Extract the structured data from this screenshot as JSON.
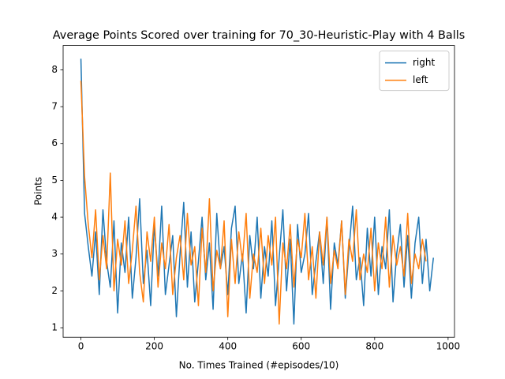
{
  "chart_data": {
    "type": "line",
    "title": "Average Points Scored over training for 70_30-Heuristic-Play with 4 Balls",
    "x_label": "No. Times Trained (#episodes/10)",
    "y_label": "Points",
    "x": [
      0,
      10,
      20,
      30,
      40,
      50,
      60,
      70,
      80,
      90,
      100,
      110,
      120,
      130,
      140,
      150,
      160,
      170,
      180,
      190,
      200,
      210,
      220,
      230,
      240,
      250,
      260,
      270,
      280,
      290,
      300,
      310,
      320,
      330,
      340,
      350,
      360,
      370,
      380,
      390,
      400,
      410,
      420,
      430,
      440,
      450,
      460,
      470,
      480,
      490,
      500,
      510,
      520,
      530,
      540,
      550,
      560,
      570,
      580,
      590,
      600,
      610,
      620,
      630,
      640,
      650,
      660,
      670,
      680,
      690,
      700,
      710,
      720,
      730,
      740,
      750,
      760,
      770,
      780,
      790,
      800,
      810,
      820,
      830,
      840,
      850,
      860,
      870,
      880,
      890,
      900,
      910,
      920,
      930,
      940,
      950,
      960
    ],
    "series": [
      {
        "name": "right",
        "color": "#1f77b4",
        "values": [
          8.3,
          4.1,
          3.2,
          2.4,
          3.6,
          1.9,
          4.2,
          2.8,
          2.1,
          3.9,
          1.4,
          3.3,
          2.5,
          4.0,
          1.8,
          2.9,
          4.5,
          2.2,
          3.1,
          1.6,
          3.8,
          2.4,
          4.3,
          1.9,
          2.7,
          3.5,
          1.3,
          3.0,
          4.4,
          2.1,
          3.6,
          1.7,
          2.8,
          4.0,
          2.3,
          3.3,
          1.5,
          4.1,
          2.6,
          3.2,
          1.9,
          3.7,
          4.3,
          2.2,
          3.0,
          1.4,
          3.5,
          2.6,
          4.0,
          1.8,
          3.2,
          2.4,
          3.9,
          1.6,
          2.9,
          4.2,
          2.0,
          3.4,
          1.1,
          3.8,
          2.5,
          3.0,
          4.1,
          1.9,
          2.8,
          3.6,
          2.2,
          4.0,
          1.5,
          3.3,
          2.7,
          3.9,
          1.8,
          3.1,
          4.3,
          2.3,
          2.9,
          1.6,
          3.7,
          2.4,
          4.0,
          1.9,
          3.2,
          2.6,
          4.2,
          1.7,
          3.0,
          3.8,
          2.1,
          3.5,
          1.8,
          3.3,
          4.0,
          2.2,
          3.4,
          2.0,
          2.9
        ]
      },
      {
        "name": "left",
        "color": "#ff7f0e",
        "values": [
          7.7,
          5.1,
          3.8,
          2.9,
          4.2,
          2.3,
          3.5,
          2.6,
          5.2,
          2.0,
          3.4,
          2.7,
          3.9,
          2.2,
          3.1,
          4.3,
          2.5,
          1.7,
          3.6,
          2.8,
          4.0,
          2.1,
          3.3,
          2.6,
          3.8,
          1.9,
          2.9,
          3.5,
          2.3,
          4.1,
          2.7,
          3.2,
          1.6,
          3.7,
          2.5,
          4.5,
          2.0,
          3.1,
          2.6,
          3.9,
          1.3,
          3.4,
          2.2,
          3.6,
          2.8,
          4.1,
          1.8,
          3.0,
          2.5,
          3.7,
          2.2,
          3.5,
          2.7,
          4.0,
          1.1,
          3.3,
          2.6,
          3.8,
          2.1,
          3.4,
          2.9,
          4.1,
          2.3,
          3.2,
          1.8,
          3.6,
          2.7,
          4.0,
          2.2,
          3.1,
          2.6,
          3.9,
          1.9,
          3.4,
          2.8,
          4.2,
          2.3,
          3.0,
          2.5,
          3.7,
          2.0,
          3.3,
          2.6,
          4.0,
          2.1,
          3.5,
          2.7,
          3.2,
          2.4,
          4.1,
          2.2,
          3.0,
          2.6,
          3.4,
          2.8,
          null,
          null
        ]
      }
    ],
    "xlim": [
      -48.45,
      1017.45
    ],
    "ylim": [
      0.74,
      8.66
    ],
    "xticks": [
      0,
      200,
      400,
      600,
      800,
      1000
    ],
    "yticks": [
      1,
      2,
      3,
      4,
      5,
      6,
      7,
      8
    ],
    "grid": false,
    "legend": "upper right"
  }
}
